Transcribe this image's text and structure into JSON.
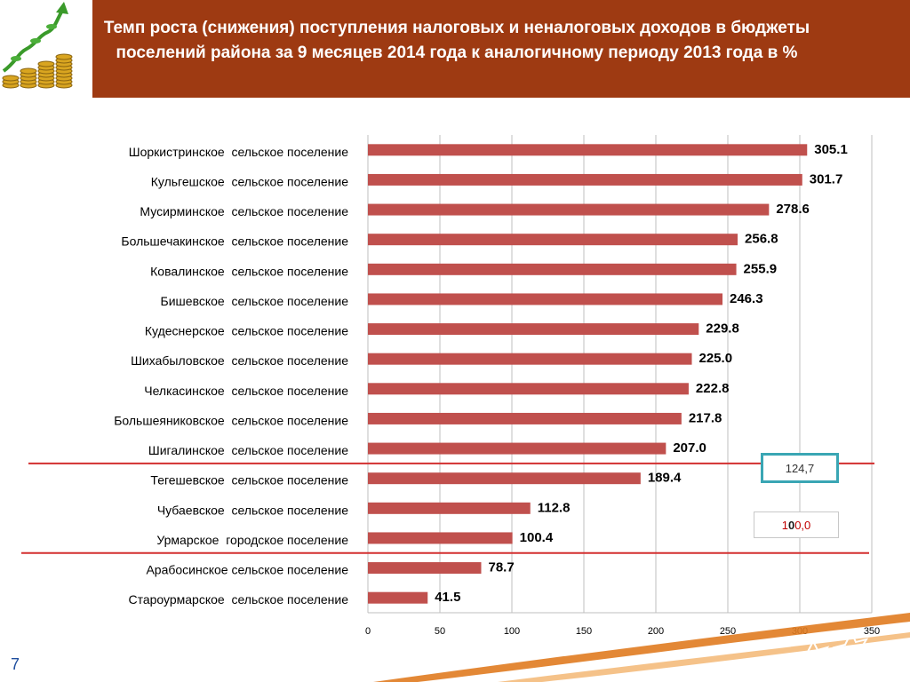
{
  "header": {
    "title": "Темп роста (снижения) поступления налоговых и неналоговых доходов в бюджеты поселений района за 9 месяцев 2014 года к аналогичному периоду 2013 года в %"
  },
  "chart_data": {
    "type": "bar",
    "orientation": "horizontal",
    "categories": [
      "Шоркистринское  сельское поселение",
      "Кульгешское  сельское поселение",
      "Мусирминское  сельское поселение",
      "Большечакинское  сельское поселение",
      "Ковалинское  сельское поселение",
      "Бишевское  сельское поселение",
      "Кудеснерское  сельское поселение",
      "Шихабыловское  сельское поселение",
      "Челкасинское  сельское поселение",
      "Большеяниковское  сельское поселение",
      "Шигалинское  сельское поселение",
      "Тегешевское  сельское поселение",
      "Чубаевское  сельское поселение",
      "Урмарское  городское поселение",
      "Арабосинское сельское поселение",
      "Староурмарское  сельское поселение"
    ],
    "values": [
      305.1,
      301.7,
      278.6,
      256.8,
      255.9,
      246.3,
      229.8,
      225.0,
      222.8,
      217.8,
      207.0,
      189.4,
      112.8,
      100.4,
      78.7,
      41.5
    ],
    "value_labels": [
      "305.1",
      "301.7",
      "278.6",
      "256.8",
      "255.9",
      "246.3",
      "229.8",
      "225.0",
      "222.8",
      "217.8",
      "207.0",
      "189.4",
      "112.8",
      "100.4",
      "78.7",
      "41.5"
    ],
    "xlim": [
      0,
      350
    ],
    "xticks": [
      0,
      50,
      100,
      150,
      200,
      250,
      300,
      350
    ],
    "grid": true,
    "bar_color": "#c0504d",
    "reference_line_color": "#d32f2f",
    "reference_lines": [
      {
        "between": [
          "Шигалинское  сельское поселение",
          "Тегешевское  сельское поселение"
        ],
        "label": "124,7"
      },
      {
        "between": [
          "Урмарское  городское поселение",
          "Арабосинское сельское поселение"
        ],
        "label": "100,0"
      }
    ]
  },
  "page": {
    "number": "7"
  },
  "colors": {
    "header_bg": "#9e3a12",
    "accent_orange": "#e07b20"
  }
}
